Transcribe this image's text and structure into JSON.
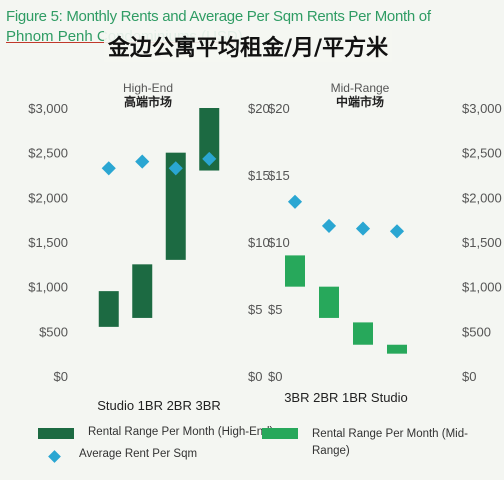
{
  "figure": {
    "title": "Figure 5: Monthly Rents and Average Per Sqm Rents Per Month of",
    "subtitle": "Phnom Penh Condominiums (USD)",
    "cn_title": "金边公寓平均租金/月/平方米"
  },
  "colors": {
    "high_end_bar": "#1c6a42",
    "mid_range_bar": "#27a85b",
    "avg_marker": "#2aa6d2",
    "title": "#2f9c64"
  },
  "legend": {
    "high_end_label": "Rental Range Per Month (High-End)",
    "mid_range_label": "Rental Range Per Month (Mid-Range)",
    "avg_label": "Average Rent Per Sqm"
  },
  "chart_data": [
    {
      "type": "floating-bar",
      "title": "High-End",
      "subtitle": "高端市场",
      "categories": [
        "Studio",
        "1BR",
        "2BR",
        "3BR"
      ],
      "series": [
        {
          "name": "Rental Range Per Month (High-End)",
          "low": [
            550,
            650,
            1300,
            2300
          ],
          "high": [
            950,
            1250,
            2500,
            3000
          ]
        },
        {
          "name": "Average Rent Per Sqm",
          "values": [
            15.5,
            16,
            15.5,
            16.2
          ]
        }
      ],
      "ylim_left": [
        0,
        3000
      ],
      "yticks_left": [
        "$0",
        "$500",
        "$1,000",
        "$1,500",
        "$2,000",
        "$2,500",
        "$3,000"
      ],
      "ylim_right": [
        0,
        20
      ],
      "yticks_right": [
        "$0",
        "$5",
        "$10",
        "$15",
        "$20"
      ]
    },
    {
      "type": "floating-bar",
      "title": "Mid-Range",
      "subtitle": "中端市场",
      "categories": [
        "3BR",
        "2BR",
        "1BR",
        "Studio"
      ],
      "series": [
        {
          "name": "Rental Range Per Month (Mid-Range)",
          "low": [
            1000,
            650,
            350,
            250
          ],
          "high": [
            1350,
            1000,
            600,
            350
          ]
        },
        {
          "name": "Average Rent Per Sqm",
          "values": [
            13,
            11.2,
            11,
            10.8
          ]
        }
      ],
      "ylim_left": [
        0,
        20
      ],
      "yticks_left": [
        "$0",
        "$5",
        "$10",
        "$15",
        "$20"
      ],
      "ylim_right": [
        0,
        3000
      ],
      "yticks_right": [
        "$0",
        "$500",
        "$1,000",
        "$1,500",
        "$2,000",
        "$2,500",
        "$3,000"
      ]
    }
  ]
}
